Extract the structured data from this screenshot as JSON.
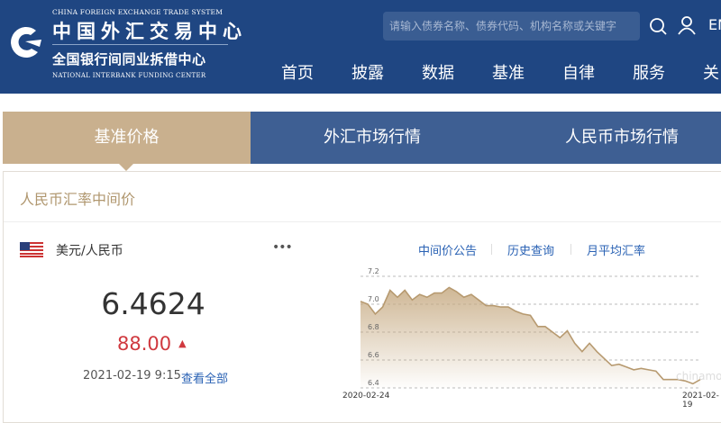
{
  "header": {
    "logo": {
      "en_top": "CHINA FOREIGN EXCHANGE TRADE SYSTEM",
      "cn_top": "中国外汇交易中心",
      "cn_bottom": "全国银行间同业拆借中心",
      "en_bottom": "NATIONAL INTERBANK FUNDING CENTER"
    },
    "search_placeholder": "请输入债券名称、债券代码、机构名称或关键字",
    "lang": "EN",
    "nav": [
      "首页",
      "披露",
      "数据",
      "基准",
      "自律",
      "服务",
      "关"
    ]
  },
  "tabs": [
    {
      "label": "基准价格",
      "active": true
    },
    {
      "label": "外汇市场行情",
      "active": false
    },
    {
      "label": "人民币市场行情",
      "active": false
    }
  ],
  "panel": {
    "title": "人民币汇率中间价",
    "pair": "美元/人民币",
    "more": "•••",
    "rate": "6.4624",
    "change": "88.00",
    "change_direction": "up",
    "date": "2021-02-19 9:15",
    "view_all": "查看全部",
    "links": [
      "中间价公告",
      "历史查询",
      "月平均汇率"
    ]
  },
  "colors": {
    "header": "#1f4682",
    "tab_active": "#c9b08e",
    "tab_inactive": "#3e5f93",
    "up": "#d0393f",
    "link": "#2a62b4",
    "line": "#b79a70"
  },
  "chart_data": {
    "type": "area",
    "x_start": "2020-02-24",
    "x_end": "2021-02-19",
    "yticks": [
      "7.2",
      "7.0",
      "6.8",
      "6.6",
      "6.4"
    ],
    "ylim": [
      6.4,
      7.2
    ],
    "grid": true,
    "watermark": "chinamoney",
    "values": [
      7.02,
      7.0,
      6.93,
      6.98,
      7.1,
      7.05,
      7.1,
      7.03,
      7.07,
      7.05,
      7.08,
      7.08,
      7.12,
      7.09,
      7.05,
      7.07,
      7.03,
      6.99,
      6.99,
      6.98,
      6.98,
      6.95,
      6.93,
      6.92,
      6.84,
      6.84,
      6.8,
      6.76,
      6.81,
      6.72,
      6.66,
      6.72,
      6.66,
      6.61,
      6.56,
      6.57,
      6.55,
      6.53,
      6.54,
      6.53,
      6.52,
      6.46,
      6.46,
      6.46,
      6.45,
      6.43,
      6.46
    ]
  }
}
